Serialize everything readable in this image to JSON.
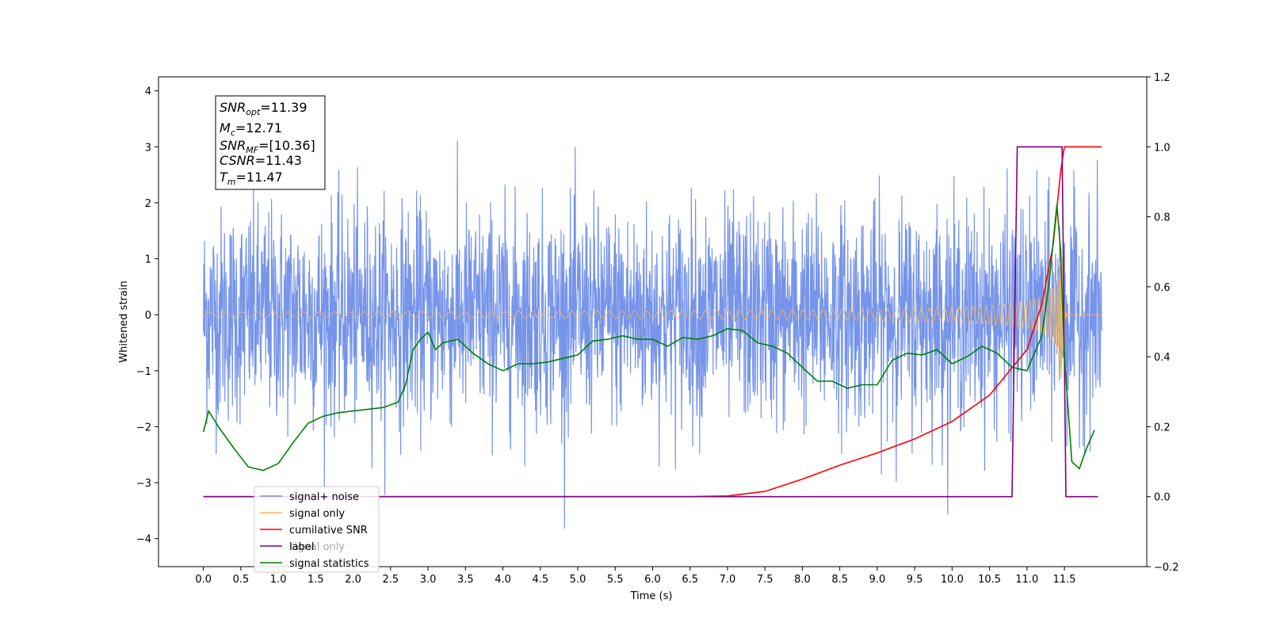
{
  "chart_data": {
    "type": "line",
    "xlabel": "Time (s)",
    "ylabel": "Whitened strain",
    "xlim": [
      -0.6,
      12.6
    ],
    "ylim": [
      -4.5,
      4.25
    ],
    "y2lim": [
      -0.2,
      1.2
    ],
    "grid": false,
    "legend_position": "lower-left",
    "x_ticks": [
      "0.0",
      "0.5",
      "1.0",
      "1.5",
      "2.0",
      "2.5",
      "3.0",
      "3.5",
      "4.0",
      "4.5",
      "5.0",
      "5.5",
      "6.0",
      "6.5",
      "7.0",
      "7.5",
      "8.0",
      "8.5",
      "9.0",
      "9.5",
      "10.0",
      "10.5",
      "11.0",
      "11.5"
    ],
    "y_ticks": [
      "4",
      "3",
      "2",
      "1",
      "0",
      "−1",
      "−2",
      "−3",
      "−4"
    ],
    "y2_ticks": [
      "1.2",
      "1.0",
      "0.8",
      "0.6",
      "0.4",
      "0.2",
      "0.0",
      "−0.2"
    ],
    "annotation": {
      "snr_opt": {
        "base": "SNR",
        "sub": "opt",
        "value": "=11.39"
      },
      "mc": {
        "base": "M",
        "sub": "c",
        "value": "=12.71"
      },
      "snr_mf": {
        "base": "SNR",
        "sub": "MF",
        "value": "=[10.36]"
      },
      "csnr": {
        "base": "CSNR",
        "sub": "",
        "value": "=11.43"
      },
      "tm": {
        "base": "T",
        "sub": "m",
        "value": "=11.47"
      }
    },
    "series": [
      {
        "name": "signal+ noise",
        "color": "#6f8ee8",
        "axis": "left",
        "x_range": [
          0.0,
          12.0
        ],
        "envelope_approx": [
          -2.6,
          2.6
        ]
      },
      {
        "name": "signal only",
        "color": "#f5b862",
        "axis": "left",
        "x_range": [
          0.0,
          12.0
        ],
        "chirp_peak_time": 11.47,
        "peak_amplitude": 1.2
      },
      {
        "name": "cumilative SNR",
        "color": "#ff0000",
        "axis": "right",
        "x": [
          0.0,
          6.5,
          7.0,
          7.5,
          8.0,
          8.5,
          9.0,
          9.5,
          10.0,
          10.5,
          11.0,
          11.2,
          11.35,
          11.45,
          11.5,
          12.0
        ],
        "values": [
          0.0,
          0.0,
          0.002,
          0.015,
          0.05,
          0.09,
          0.125,
          0.165,
          0.215,
          0.29,
          0.42,
          0.55,
          0.72,
          0.93,
          1.0,
          1.0
        ]
      },
      {
        "name": "label",
        "color": "#800080",
        "axis": "right",
        "x": [
          0.0,
          10.8,
          10.87,
          11.47,
          11.52,
          11.95
        ],
        "values": [
          0.0,
          0.0,
          1.0,
          1.0,
          0.0,
          0.0
        ]
      },
      {
        "name": "signal only",
        "color": "#800080",
        "axis": "right",
        "legend_only": true
      },
      {
        "name": "signal statistics",
        "color": "#008000",
        "axis": "right",
        "x": [
          0.0,
          0.07,
          0.2,
          0.4,
          0.6,
          0.8,
          1.0,
          1.2,
          1.4,
          1.6,
          1.8,
          2.0,
          2.2,
          2.4,
          2.6,
          2.7,
          2.8,
          2.9,
          3.0,
          3.1,
          3.2,
          3.4,
          3.6,
          3.8,
          4.0,
          4.2,
          4.4,
          4.6,
          4.8,
          5.0,
          5.2,
          5.4,
          5.6,
          5.8,
          6.0,
          6.2,
          6.4,
          6.6,
          6.8,
          7.0,
          7.2,
          7.4,
          7.6,
          7.8,
          8.0,
          8.2,
          8.4,
          8.6,
          8.8,
          9.0,
          9.2,
          9.4,
          9.6,
          9.8,
          10.0,
          10.2,
          10.4,
          10.6,
          10.8,
          11.0,
          11.2,
          11.3,
          11.4,
          11.45,
          11.5,
          11.6,
          11.7,
          11.8,
          11.9
        ],
        "values": [
          0.185,
          0.245,
          0.2,
          0.14,
          0.085,
          0.075,
          0.095,
          0.155,
          0.21,
          0.23,
          0.24,
          0.245,
          0.25,
          0.255,
          0.27,
          0.32,
          0.42,
          0.45,
          0.47,
          0.42,
          0.44,
          0.45,
          0.41,
          0.38,
          0.36,
          0.38,
          0.38,
          0.385,
          0.395,
          0.405,
          0.445,
          0.45,
          0.46,
          0.45,
          0.45,
          0.43,
          0.455,
          0.45,
          0.46,
          0.48,
          0.475,
          0.44,
          0.43,
          0.41,
          0.37,
          0.33,
          0.33,
          0.31,
          0.32,
          0.32,
          0.39,
          0.41,
          0.405,
          0.42,
          0.38,
          0.4,
          0.43,
          0.41,
          0.37,
          0.36,
          0.46,
          0.62,
          0.835,
          0.7,
          0.4,
          0.1,
          0.08,
          0.14,
          0.19
        ]
      }
    ]
  }
}
